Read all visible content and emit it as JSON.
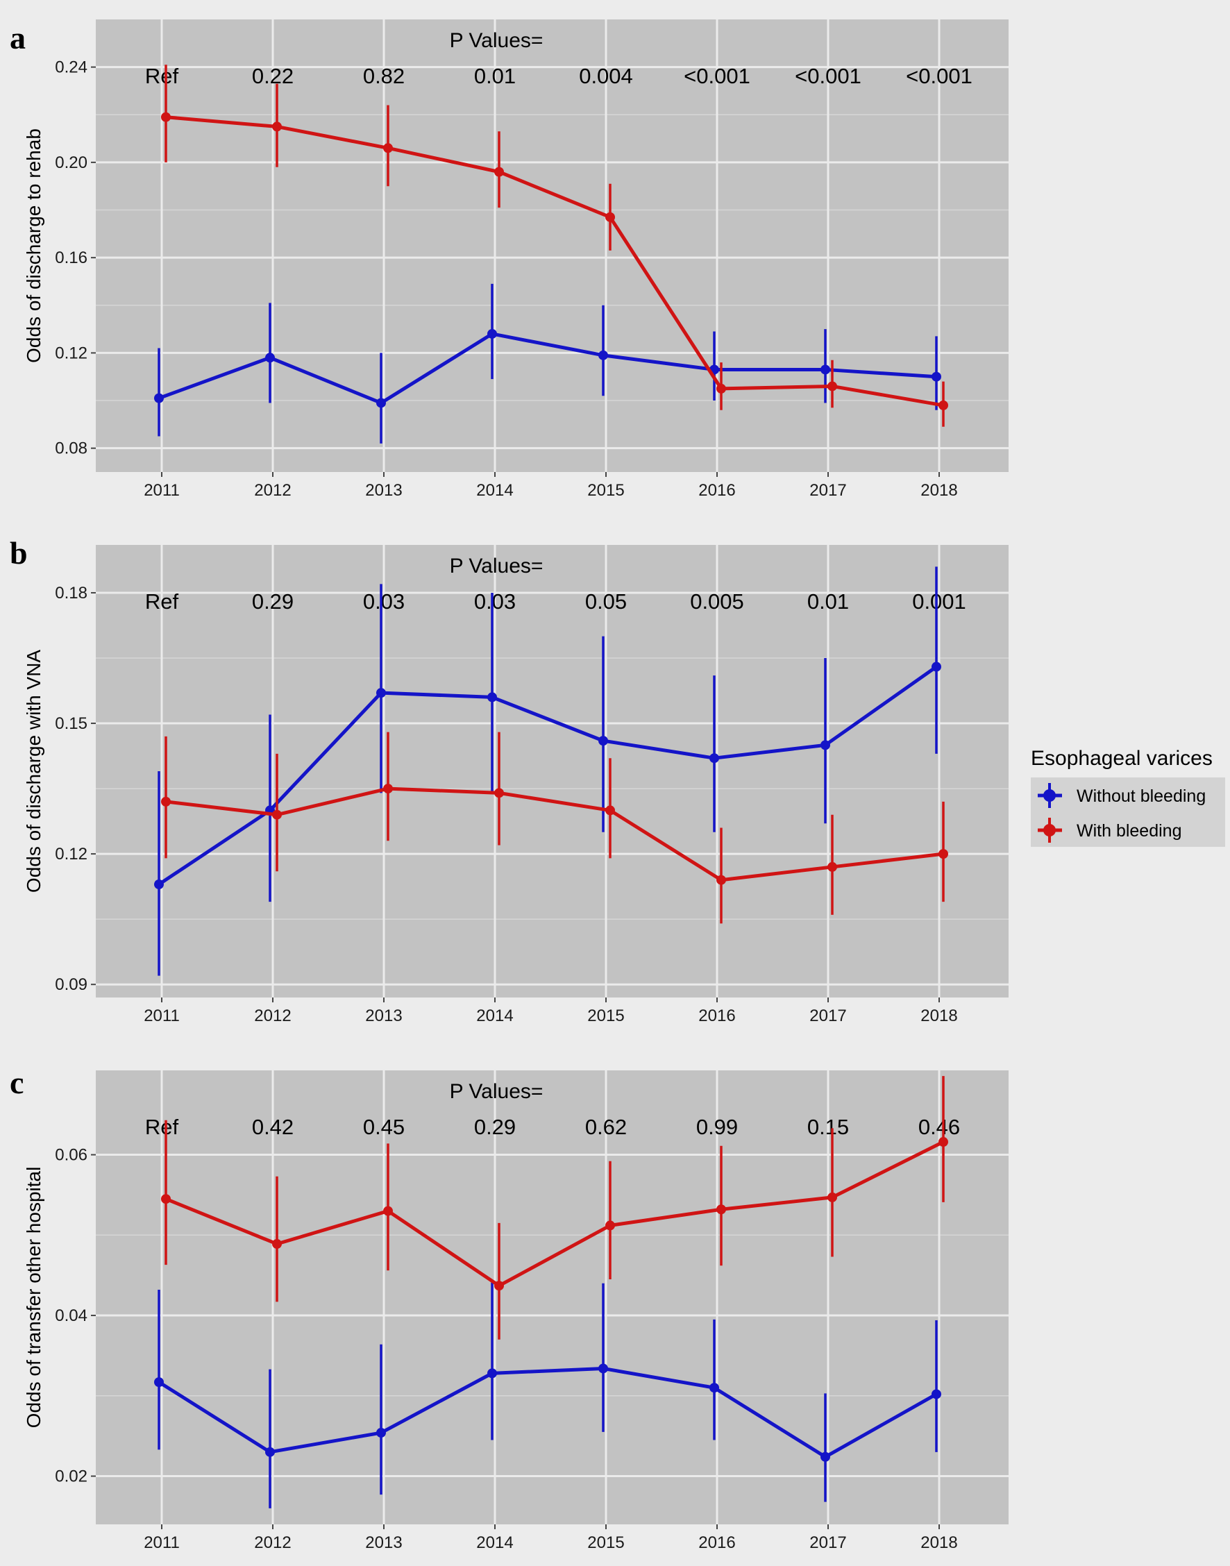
{
  "chart_data": [
    {
      "type": "line",
      "panel": "a",
      "ylabel": "Odds of discharge to rehab",
      "xlabel": "",
      "x": [
        "2011",
        "2012",
        "2013",
        "2014",
        "2015",
        "2016",
        "2017",
        "2018"
      ],
      "ylim": [
        0.07,
        0.26
      ],
      "yticks": [
        "0.08",
        "0.12",
        "0.16",
        "0.20",
        "0.24"
      ],
      "pvalues_title": "P Values=",
      "pvalues": [
        "Ref",
        "0.22",
        "0.82",
        "0.01",
        "0.004",
        "<0.001",
        "<0.001",
        "<0.001"
      ],
      "grid": true,
      "series": [
        {
          "name": "Without bleeding",
          "color": "#1414c8",
          "values": [
            0.101,
            0.118,
            0.099,
            0.128,
            0.119,
            0.113,
            0.113,
            0.11
          ],
          "lower": [
            0.085,
            0.099,
            0.082,
            0.109,
            0.102,
            0.1,
            0.099,
            0.096
          ],
          "upper": [
            0.122,
            0.141,
            0.12,
            0.149,
            0.14,
            0.129,
            0.13,
            0.127
          ]
        },
        {
          "name": "With bleeding",
          "color": "#d01414",
          "values": [
            0.219,
            0.215,
            0.206,
            0.196,
            0.177,
            0.105,
            0.106,
            0.098
          ],
          "lower": [
            0.2,
            0.198,
            0.19,
            0.181,
            0.163,
            0.096,
            0.097,
            0.089
          ],
          "upper": [
            0.241,
            0.233,
            0.224,
            0.213,
            0.191,
            0.116,
            0.117,
            0.108
          ]
        }
      ]
    },
    {
      "type": "line",
      "panel": "b",
      "ylabel": "Odds of discharge with VNA",
      "xlabel": "",
      "x": [
        "2011",
        "2012",
        "2013",
        "2014",
        "2015",
        "2016",
        "2017",
        "2018"
      ],
      "ylim": [
        0.087,
        0.191
      ],
      "yticks": [
        "0.09",
        "0.12",
        "0.15",
        "0.18"
      ],
      "pvalues_title": "P Values=",
      "pvalues": [
        "Ref",
        "0.29",
        "0.03",
        "0.03",
        "0.05",
        "0.005",
        "0.01",
        "0.001"
      ],
      "grid": true,
      "series": [
        {
          "name": "Without bleeding",
          "color": "#1414c8",
          "values": [
            0.113,
            0.13,
            0.157,
            0.156,
            0.146,
            0.142,
            0.145,
            0.163
          ],
          "lower": [
            0.092,
            0.109,
            0.134,
            0.134,
            0.125,
            0.125,
            0.127,
            0.143
          ],
          "upper": [
            0.139,
            0.152,
            0.182,
            0.18,
            0.17,
            0.161,
            0.165,
            0.186
          ]
        },
        {
          "name": "With bleeding",
          "color": "#d01414",
          "values": [
            0.132,
            0.129,
            0.135,
            0.134,
            0.13,
            0.114,
            0.117,
            0.12
          ],
          "lower": [
            0.119,
            0.116,
            0.123,
            0.122,
            0.119,
            0.104,
            0.106,
            0.109
          ],
          "upper": [
            0.147,
            0.143,
            0.148,
            0.148,
            0.142,
            0.126,
            0.129,
            0.132
          ]
        }
      ]
    },
    {
      "type": "line",
      "panel": "c",
      "ylabel": "Odds of transfer other hospital",
      "xlabel": "",
      "x": [
        "2011",
        "2012",
        "2013",
        "2014",
        "2015",
        "2016",
        "2017",
        "2018"
      ],
      "ylim": [
        0.014,
        0.0705
      ],
      "yticks": [
        "0.02",
        "0.04",
        "0.06"
      ],
      "pvalues_title": "P Values=",
      "pvalues": [
        "Ref",
        "0.42",
        "0.45",
        "0.29",
        "0.62",
        "0.99",
        "0.15",
        "0.46"
      ],
      "grid": true,
      "series": [
        {
          "name": "Without bleeding",
          "color": "#1414c8",
          "values": [
            0.0317,
            0.023,
            0.0254,
            0.0328,
            0.0334,
            0.031,
            0.0224,
            0.0302
          ],
          "lower": [
            0.0233,
            0.016,
            0.0177,
            0.0245,
            0.0255,
            0.0245,
            0.0168,
            0.023
          ],
          "upper": [
            0.0432,
            0.0333,
            0.0364,
            0.0441,
            0.044,
            0.0395,
            0.0303,
            0.0394
          ]
        },
        {
          "name": "With bleeding",
          "color": "#d01414",
          "values": [
            0.0545,
            0.0489,
            0.053,
            0.0437,
            0.0512,
            0.0532,
            0.0547,
            0.0616
          ],
          "lower": [
            0.0463,
            0.0417,
            0.0456,
            0.037,
            0.0445,
            0.0462,
            0.0473,
            0.0541
          ],
          "upper": [
            0.0643,
            0.0573,
            0.0614,
            0.0515,
            0.0592,
            0.0611,
            0.0633,
            0.0698
          ]
        }
      ]
    }
  ],
  "legend": {
    "title": "Esophageal varices",
    "items": [
      {
        "label": "Without bleeding",
        "color": "#1414c8"
      },
      {
        "label": "With bleeding",
        "color": "#d01414"
      }
    ]
  }
}
